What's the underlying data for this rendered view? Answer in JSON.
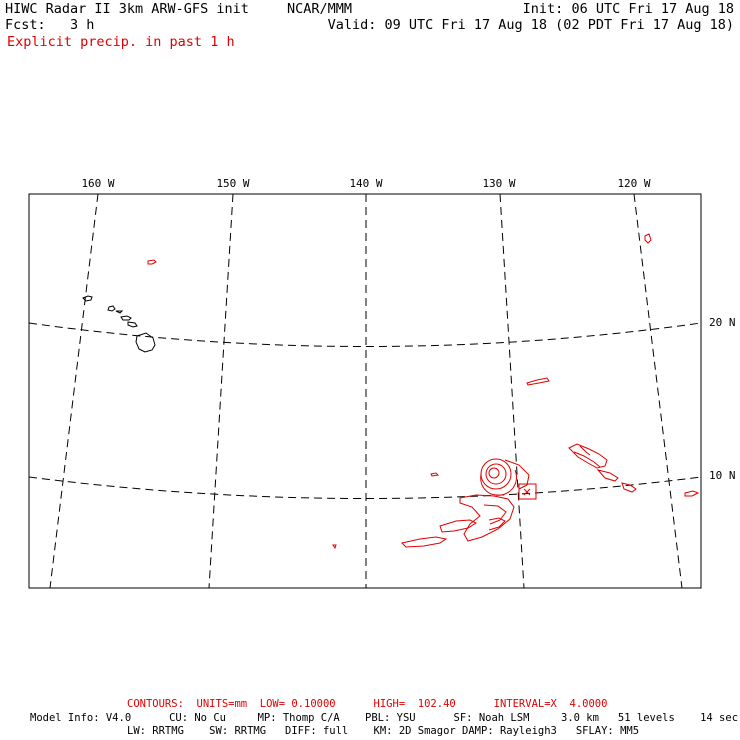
{
  "header": {
    "title": "HIWC Radar II 3km ARW-GFS init",
    "org": "NCAR/MMM",
    "init": "Init: 06 UTC Fri 17 Aug 18",
    "fcst": "Fcst:   3 h",
    "valid": "Valid: 09 UTC Fri 17 Aug 18 (02 PDT Fri 17 Aug 18)",
    "field": "Explicit precip. in past 1 h"
  },
  "map": {
    "lon_labels": [
      "160 W",
      "150 W",
      "140 W",
      "130 W",
      "120 W"
    ],
    "lat_labels": [
      "20 N",
      "10 N"
    ],
    "colors": {
      "precip": "#e00000",
      "land": "#000000",
      "grid": "#000000"
    }
  },
  "footer": {
    "contours": "CONTOURS:  UNITS=mm  LOW= 0.10000      HIGH=  102.40      INTERVAL=X  4.0000",
    "model_line1": "Model Info: V4.0      CU: No Cu     MP: Thomp C/A    PBL: YSU      SF: Noah LSM     3.0 km   51 levels    14 sec",
    "model_line2": "LW: RRTMG    SW: RRTMG   DIFF: full    KM: 2D Smagor DAMP: Rayleigh3   SFLAY: MM5"
  }
}
